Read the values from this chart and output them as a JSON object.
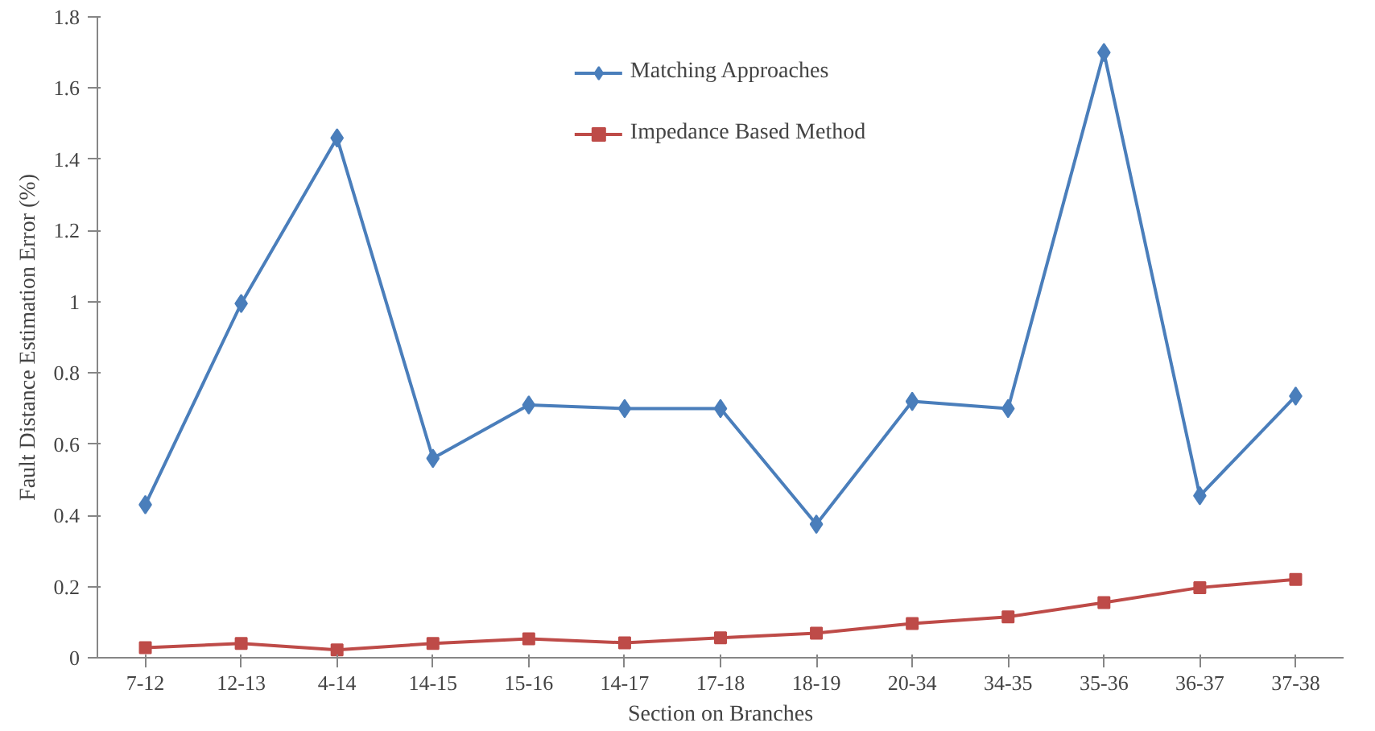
{
  "chart_data": {
    "type": "line",
    "xlabel": "Section on Branches",
    "ylabel": "Fault Distance Estimation Error (%)",
    "categories": [
      "7-12",
      "12-13",
      "4-14",
      "14-15",
      "15-16",
      "14-17",
      "17-18",
      "18-19",
      "20-34",
      "34-35",
      "35-36",
      "36-37",
      "37-38"
    ],
    "series": [
      {
        "name": "Matching Approaches",
        "color": "#4a7ebb",
        "marker": "diamond",
        "values": [
          0.43,
          0.995,
          1.46,
          0.56,
          0.71,
          0.7,
          0.7,
          0.375,
          0.72,
          0.7,
          1.7,
          0.455,
          0.735
        ]
      },
      {
        "name": "Impedance Based Method",
        "color": "#be4b48",
        "marker": "square",
        "values": [
          0.028,
          0.04,
          0.022,
          0.04,
          0.053,
          0.042,
          0.056,
          0.069,
          0.096,
          0.115,
          0.155,
          0.197,
          0.22
        ]
      }
    ],
    "ylim": [
      0,
      1.8
    ],
    "yticks": [
      0,
      0.2,
      0.4,
      0.6,
      0.8,
      1,
      1.2,
      1.4,
      1.6,
      1.8
    ],
    "grid": false,
    "legend": "top",
    "line_style": "solid"
  }
}
